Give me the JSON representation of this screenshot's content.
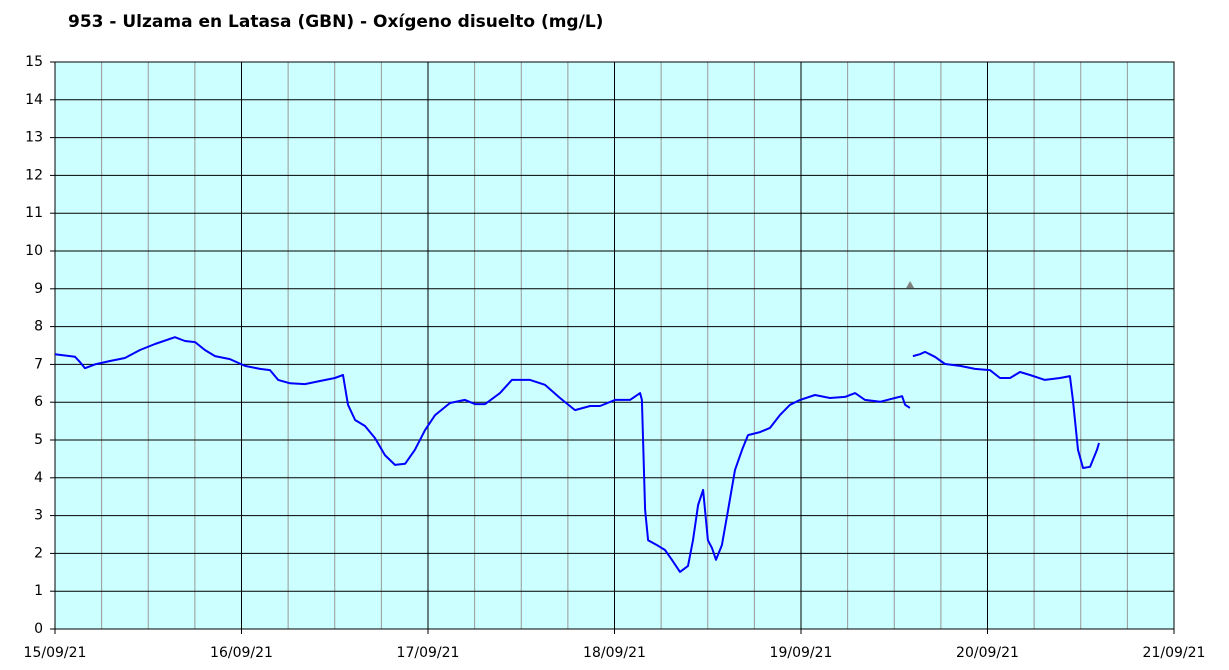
{
  "chart_data": {
    "type": "line",
    "title": "953 - Ulzama en Latasa (GBN) - Oxígeno disuelto (mg/L)",
    "xlim": [
      0,
      6
    ],
    "xticks": [
      {
        "value": 0,
        "label": "15/09/21"
      },
      {
        "value": 1,
        "label": "16/09/21"
      },
      {
        "value": 2,
        "label": "17/09/21"
      },
      {
        "value": 3,
        "label": "18/09/21"
      },
      {
        "value": 4,
        "label": "19/09/21"
      },
      {
        "value": 5,
        "label": "20/09/21"
      },
      {
        "value": 6,
        "label": "21/09/21"
      }
    ],
    "x_minor_ticks": [
      0.25,
      0.5,
      0.75,
      1.25,
      1.5,
      1.75,
      2.25,
      2.5,
      2.75,
      3.25,
      3.5,
      3.75,
      4.25,
      4.5,
      4.75,
      5.25,
      5.5,
      5.75
    ],
    "ylim": [
      0,
      15
    ],
    "yticks": [
      0,
      1,
      2,
      3,
      4,
      5,
      6,
      7,
      8,
      9,
      10,
      11,
      12,
      13,
      14,
      15
    ],
    "grid": true,
    "plot_background": "#ccffff",
    "series": [
      {
        "color": "#0000ff",
        "x": [
          0,
          0.107,
          0.134,
          0.161,
          0.214,
          0.295,
          0.375,
          0.456,
          0.536,
          0.643,
          0.697,
          0.751,
          0.804,
          0.858,
          0.938,
          1.019,
          1.099,
          1.153,
          1.196,
          1.26,
          1.34,
          1.421,
          1.501,
          1.544,
          1.571,
          1.609,
          1.662,
          1.716,
          1.769,
          1.823,
          1.877,
          1.93,
          1.984,
          2.038,
          2.118,
          2.198,
          2.252,
          2.306,
          2.386,
          2.45,
          2.547,
          2.627,
          2.708,
          2.788,
          2.869,
          2.922,
          3.003,
          3.083,
          3.137,
          3.147,
          3.164,
          3.18,
          3.234,
          3.271,
          3.308,
          3.351,
          3.394,
          3.421,
          3.448,
          3.475,
          3.501,
          3.523,
          3.544,
          3.576,
          3.609,
          3.646,
          3.684,
          3.716,
          3.78,
          3.834,
          3.887,
          3.941,
          3.995,
          4.075,
          4.155,
          4.236,
          4.29,
          4.343,
          4.424,
          4.504,
          4.542,
          4.558,
          4.584,
          4.592,
          4.6,
          4.638,
          4.665,
          4.718,
          4.772,
          4.853,
          4.933,
          5.013,
          5.067,
          5.121,
          5.174,
          5.228,
          5.308,
          5.389,
          5.442,
          5.458,
          5.485,
          5.512,
          5.55,
          5.587,
          5.598
        ],
        "values": [
          7.27,
          7.2,
          7.06,
          6.9,
          7.0,
          7.09,
          7.17,
          7.38,
          7.54,
          7.72,
          7.62,
          7.59,
          7.38,
          7.22,
          7.14,
          6.96,
          6.88,
          6.85,
          6.59,
          6.5,
          6.48,
          6.56,
          6.64,
          6.72,
          5.93,
          5.53,
          5.37,
          5.05,
          4.6,
          4.34,
          4.37,
          4.74,
          5.26,
          5.66,
          5.98,
          6.06,
          5.95,
          5.95,
          6.24,
          6.59,
          6.59,
          6.46,
          6.11,
          5.79,
          5.9,
          5.9,
          6.06,
          6.06,
          6.24,
          6.06,
          3.15,
          2.35,
          2.2,
          2.09,
          1.83,
          1.51,
          1.67,
          2.35,
          3.28,
          3.68,
          2.35,
          2.14,
          1.83,
          2.22,
          3.15,
          4.21,
          4.74,
          5.13,
          5.21,
          5.32,
          5.66,
          5.93,
          6.06,
          6.19,
          6.11,
          6.14,
          6.24,
          6.06,
          6.01,
          6.11,
          6.16,
          5.93,
          5.85,
          null,
          7.22,
          7.27,
          7.33,
          7.2,
          7.01,
          6.96,
          6.88,
          6.85,
          6.64,
          6.64,
          6.8,
          6.72,
          6.59,
          6.64,
          6.69,
          6.06,
          4.74,
          4.26,
          4.29,
          4.74,
          4.92
        ]
      }
    ],
    "markers": [
      {
        "x": 4.585,
        "y": 9.1,
        "color": "#808080"
      }
    ]
  }
}
